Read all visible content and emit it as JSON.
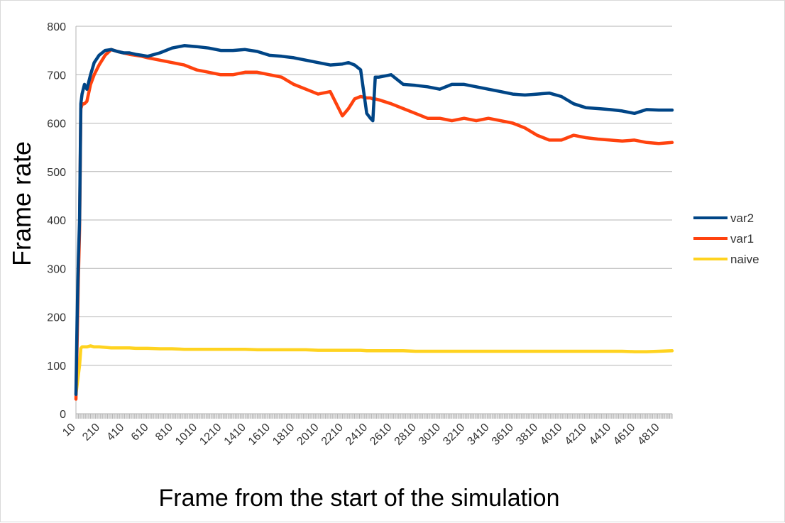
{
  "chart_data": {
    "type": "line",
    "title": "",
    "xlabel": "Frame from the start of the simulation",
    "ylabel": "Frame rate",
    "ylim": [
      0,
      800
    ],
    "yticks": [
      0,
      100,
      200,
      300,
      400,
      500,
      600,
      700,
      800
    ],
    "xlim": [
      10,
      4910
    ],
    "xticks": [
      10,
      210,
      410,
      610,
      810,
      1010,
      1210,
      1410,
      1610,
      1810,
      2010,
      2210,
      2410,
      2610,
      2810,
      3010,
      3210,
      3410,
      3610,
      3810,
      4010,
      4210,
      4410,
      4610,
      4810
    ],
    "grid": "horizontal",
    "legend_position": "right",
    "x": [
      10,
      20,
      30,
      40,
      50,
      60,
      70,
      80,
      100,
      130,
      160,
      200,
      250,
      300,
      350,
      400,
      450,
      500,
      550,
      600,
      700,
      800,
      900,
      1000,
      1100,
      1200,
      1300,
      1400,
      1500,
      1600,
      1700,
      1800,
      1900,
      2000,
      2100,
      2200,
      2250,
      2300,
      2350,
      2400,
      2430,
      2450,
      2470,
      2500,
      2600,
      2700,
      2800,
      2900,
      3000,
      3100,
      3200,
      3300,
      3400,
      3500,
      3600,
      3700,
      3800,
      3900,
      4000,
      4100,
      4200,
      4300,
      4400,
      4500,
      4600,
      4700,
      4800,
      4910
    ],
    "series": [
      {
        "name": "var2",
        "color": "#004586",
        "values": [
          40,
          200,
          320,
          400,
          640,
          660,
          670,
          680,
          670,
          700,
          725,
          740,
          750,
          752,
          748,
          745,
          745,
          742,
          740,
          738,
          745,
          755,
          760,
          758,
          755,
          750,
          750,
          752,
          748,
          740,
          738,
          735,
          730,
          725,
          720,
          722,
          725,
          720,
          710,
          620,
          610,
          605,
          695,
          695,
          700,
          680,
          678,
          675,
          670,
          680,
          680,
          675,
          670,
          665,
          660,
          658,
          660,
          662,
          655,
          640,
          632,
          630,
          628,
          625,
          620,
          628,
          627,
          627
        ]
      },
      {
        "name": "var1",
        "color": "#ff420e",
        "values": [
          30,
          150,
          280,
          380,
          630,
          638,
          640,
          640,
          645,
          680,
          700,
          720,
          740,
          752,
          748,
          745,
          742,
          740,
          738,
          735,
          730,
          725,
          720,
          710,
          705,
          700,
          700,
          705,
          705,
          700,
          695,
          680,
          670,
          660,
          665,
          615,
          630,
          650,
          655,
          652,
          652,
          650,
          650,
          648,
          640,
          630,
          620,
          610,
          610,
          605,
          610,
          605,
          610,
          605,
          600,
          590,
          575,
          565,
          565,
          575,
          570,
          567,
          565,
          563,
          565,
          560,
          558,
          560
        ]
      },
      {
        "name": "naive",
        "color": "#ffd320",
        "values": [
          40,
          60,
          80,
          100,
          135,
          138,
          138,
          138,
          138,
          140,
          138,
          138,
          137,
          136,
          136,
          136,
          136,
          135,
          135,
          135,
          134,
          134,
          133,
          133,
          133,
          133,
          133,
          133,
          132,
          132,
          132,
          132,
          132,
          131,
          131,
          131,
          131,
          131,
          131,
          130,
          130,
          130,
          130,
          130,
          130,
          130,
          129,
          129,
          129,
          129,
          129,
          129,
          129,
          129,
          129,
          129,
          129,
          129,
          129,
          129,
          129,
          129,
          129,
          129,
          128,
          128,
          129,
          130
        ]
      }
    ]
  }
}
